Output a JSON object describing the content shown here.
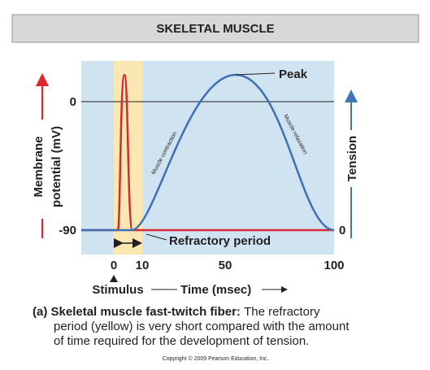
{
  "header": {
    "title": "SKELETAL MUSCLE"
  },
  "graph": {
    "peak_label": "Peak",
    "left_axis": {
      "label_line1": "Membrane",
      "label_line2": "potential (mV)",
      "ticks": [
        "0",
        "-90"
      ]
    },
    "right_axis": {
      "label": "Tension",
      "ticks": [
        "0"
      ]
    },
    "curve_labels": {
      "contraction": "Muscle contraction",
      "relaxation": "Muscle relaxation"
    },
    "refractory_label": "Refractory period",
    "x_axis": {
      "ticks": [
        "0",
        "10",
        "50",
        "100"
      ],
      "stimulus": "Stimulus",
      "label": "Time (msec)"
    }
  },
  "caption": {
    "label": "(a) Skeletal muscle fast-twitch fiber:",
    "lines": [
      "The refractory",
      "period (yellow) is very short compared with the amount",
      "of time required for the development of tension."
    ]
  },
  "footer": {
    "copyright": "Copyright © 2009 Pearson Education, Inc."
  }
}
